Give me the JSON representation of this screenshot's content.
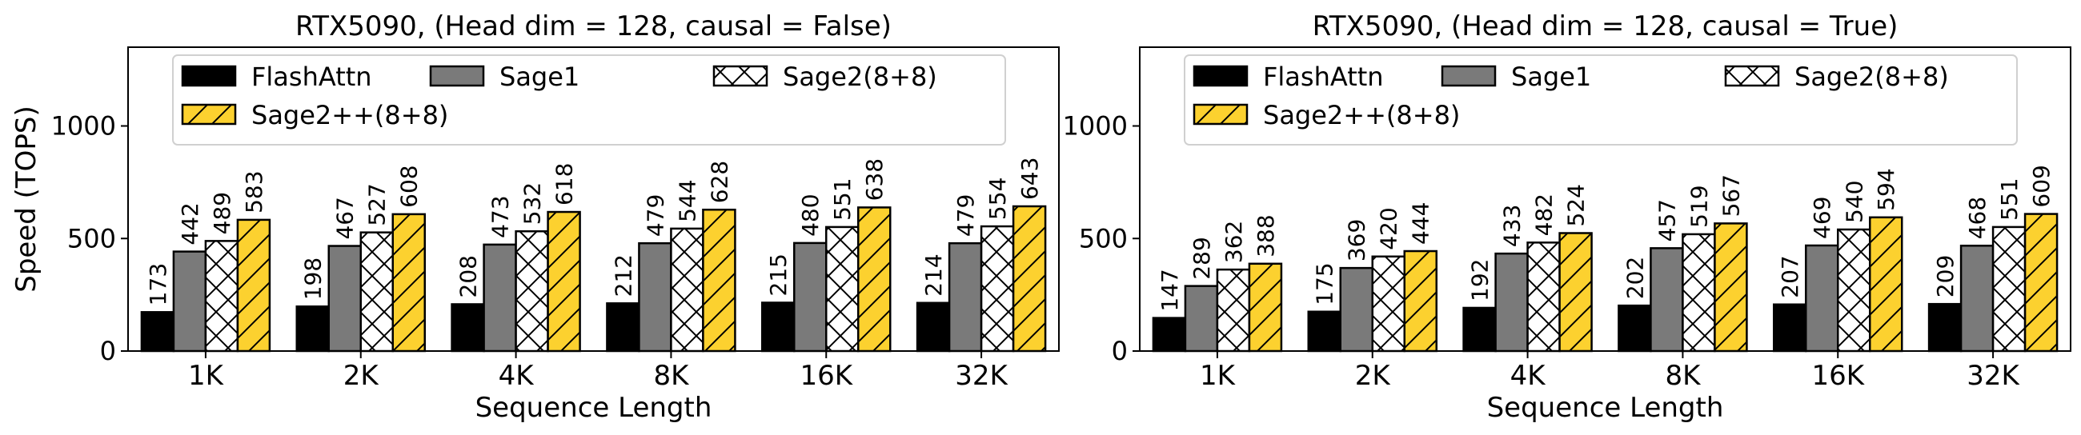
{
  "colors": {
    "FlashAttn": "#000000",
    "Sage1": "#7a7a7a",
    "Sage2(8+8)": "#ffffff",
    "Sage2++(8+8)": "#fcd12f",
    "edge": "#000000"
  },
  "chart_data": [
    {
      "type": "bar",
      "title": "RTX5090, (Head dim = 128, causal = False)",
      "xlabel": "Sequence Length",
      "ylabel": "Speed (TOPS)",
      "ylim": [
        0,
        1350
      ],
      "yticks": [
        0,
        500,
        1000
      ],
      "categories": [
        "1K",
        "2K",
        "4K",
        "8K",
        "16K",
        "32K"
      ],
      "legend": {
        "position": "top",
        "columns": 3
      },
      "series": [
        {
          "name": "FlashAttn",
          "pattern": "solid",
          "values": [
            173,
            198,
            208,
            212,
            215,
            214
          ]
        },
        {
          "name": "Sage1",
          "pattern": "solid",
          "values": [
            442,
            467,
            473,
            479,
            480,
            479
          ]
        },
        {
          "name": "Sage2(8+8)",
          "pattern": "crosshatch",
          "values": [
            489,
            527,
            532,
            544,
            551,
            554
          ]
        },
        {
          "name": "Sage2++(8+8)",
          "pattern": "diagonal",
          "values": [
            583,
            608,
            618,
            628,
            638,
            643
          ]
        }
      ]
    },
    {
      "type": "bar",
      "title": "RTX5090, (Head dim = 128, causal = True)",
      "xlabel": "Sequence Length",
      "ylabel": "",
      "ylim": [
        0,
        1350
      ],
      "yticks": [
        0,
        500,
        1000
      ],
      "categories": [
        "1K",
        "2K",
        "4K",
        "8K",
        "16K",
        "32K"
      ],
      "legend": {
        "position": "top",
        "columns": 3
      },
      "series": [
        {
          "name": "FlashAttn",
          "pattern": "solid",
          "values": [
            147,
            175,
            192,
            202,
            207,
            209
          ]
        },
        {
          "name": "Sage1",
          "pattern": "solid",
          "values": [
            289,
            369,
            433,
            457,
            469,
            468
          ]
        },
        {
          "name": "Sage2(8+8)",
          "pattern": "crosshatch",
          "values": [
            362,
            420,
            482,
            519,
            540,
            551
          ]
        },
        {
          "name": "Sage2++(8+8)",
          "pattern": "diagonal",
          "values": [
            388,
            444,
            524,
            567,
            594,
            609
          ]
        }
      ]
    }
  ]
}
